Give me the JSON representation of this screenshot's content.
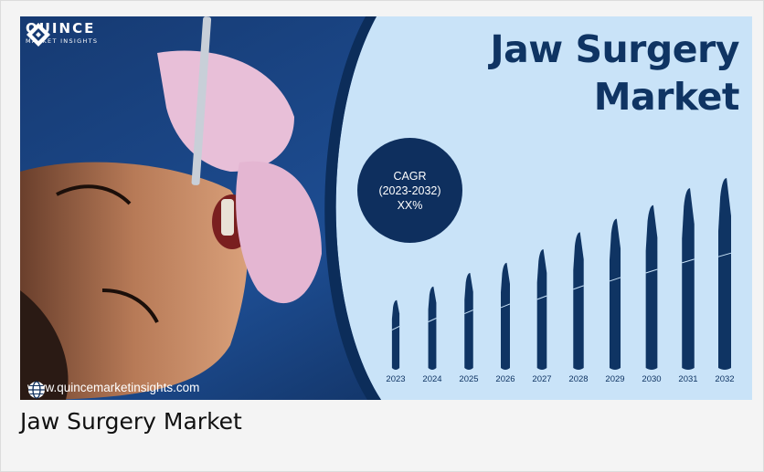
{
  "banner": {
    "brand_name": "QUINCE",
    "brand_sub": "MARKET INSIGHTS",
    "title_line1": "Jaw Surgery",
    "title_line2": "Market",
    "cagr_label": "CAGR",
    "cagr_period": "(2023-2032)",
    "cagr_value": "XX%",
    "website": "www.quincemarketinsights.com",
    "globe_icon": "globe-icon",
    "logo_icon": "quince-diamond-logo"
  },
  "colors": {
    "navy": "#0f3463",
    "panel_light": "#c9e3f8",
    "scalpel": "#0f3463",
    "cagr_circle": "#0e2f5e"
  },
  "chart_data": {
    "type": "bar",
    "categories": [
      "2023",
      "2024",
      "2025",
      "2026",
      "2027",
      "2028",
      "2029",
      "2030",
      "2031",
      "2032"
    ],
    "values": [
      1.0,
      1.2,
      1.4,
      1.55,
      1.75,
      2.0,
      2.2,
      2.4,
      2.65,
      2.8
    ],
    "title": "Jaw Surgery Market",
    "xlabel": "",
    "ylabel": "",
    "grid": false,
    "legend": "none"
  },
  "caption": {
    "text": "Jaw Surgery Market"
  }
}
